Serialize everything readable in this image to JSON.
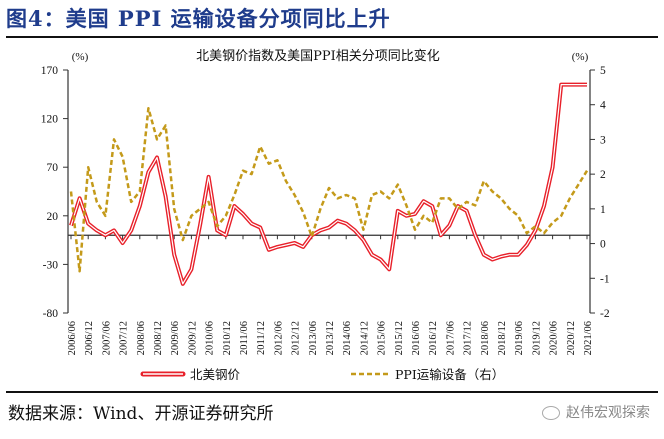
{
  "figure": {
    "title": "图4：美国 PPI 运输设备分项同比上升",
    "source": "数据来源：Wind、开源证券研究所",
    "watermark": "赵伟宏观探索"
  },
  "chart_data": {
    "type": "line",
    "title": "北美钢价指数及美国PPI相关分项同比变化",
    "left_axis": {
      "unit_label": "(%)",
      "ylim": [
        -80,
        170
      ],
      "ticks": [
        170,
        120,
        70,
        20,
        -30,
        -80
      ]
    },
    "right_axis": {
      "unit_label": "(%)",
      "ylim": [
        -2,
        5
      ],
      "ticks": [
        5,
        4,
        3,
        2,
        1,
        0,
        -1,
        -2
      ]
    },
    "x_tick_labels": [
      "2006/06",
      "2006/12",
      "2007/06",
      "2007/12",
      "2008/06",
      "2008/12",
      "2009/06",
      "2009/12",
      "2010/06",
      "2010/12",
      "2011/06",
      "2011/12",
      "2012/06",
      "2012/12",
      "2013/06",
      "2013/12",
      "2014/06",
      "2014/12",
      "2015/06",
      "2015/12",
      "2016/06",
      "2016/12",
      "2017/06",
      "2017/12",
      "2018/06",
      "2018/12",
      "2019/06",
      "2019/12",
      "2020/06",
      "2020/12",
      "2021/06"
    ],
    "x_start": "2006/06",
    "x_step_months": 3,
    "grid": false,
    "legend_position": "bottom",
    "series": [
      {
        "name": "北美钢价",
        "axis": "left",
        "color": "#e8202a",
        "style": "double-line",
        "values": [
          10,
          38,
          12,
          5,
          0,
          5,
          -8,
          5,
          30,
          65,
          80,
          40,
          -20,
          -50,
          -35,
          10,
          60,
          5,
          0,
          30,
          22,
          12,
          8,
          -15,
          -12,
          -10,
          -8,
          -12,
          0,
          5,
          8,
          15,
          12,
          5,
          -5,
          -20,
          -25,
          -35,
          25,
          20,
          22,
          35,
          30,
          0,
          10,
          30,
          25,
          0,
          -20,
          -25,
          -22,
          -20,
          -20,
          -10,
          5,
          30,
          70,
          155,
          155,
          155,
          155
        ]
      },
      {
        "name": "PPI运输设备（右）",
        "axis": "right",
        "color": "#c49a1a",
        "style": "dashed",
        "values": [
          1.5,
          -0.8,
          2.2,
          1.2,
          0.8,
          3.0,
          2.5,
          1.2,
          1.5,
          3.9,
          3.0,
          3.4,
          1.0,
          0.1,
          0.8,
          1.0,
          1.2,
          0.5,
          0.8,
          1.4,
          2.1,
          2.0,
          2.8,
          2.3,
          2.4,
          1.8,
          1.4,
          0.9,
          0.2,
          1.0,
          1.6,
          1.3,
          1.4,
          1.3,
          0.4,
          1.4,
          1.5,
          1.3,
          1.7,
          1.1,
          0.4,
          0.8,
          0.6,
          1.3,
          1.3,
          1.0,
          1.2,
          1.1,
          1.8,
          1.5,
          1.3,
          1.0,
          0.8,
          0.3,
          0.5,
          0.3,
          0.6,
          0.8,
          1.3,
          1.7,
          2.1
        ]
      }
    ],
    "legend": [
      "北美钢价",
      "PPI运输设备（右）"
    ]
  }
}
